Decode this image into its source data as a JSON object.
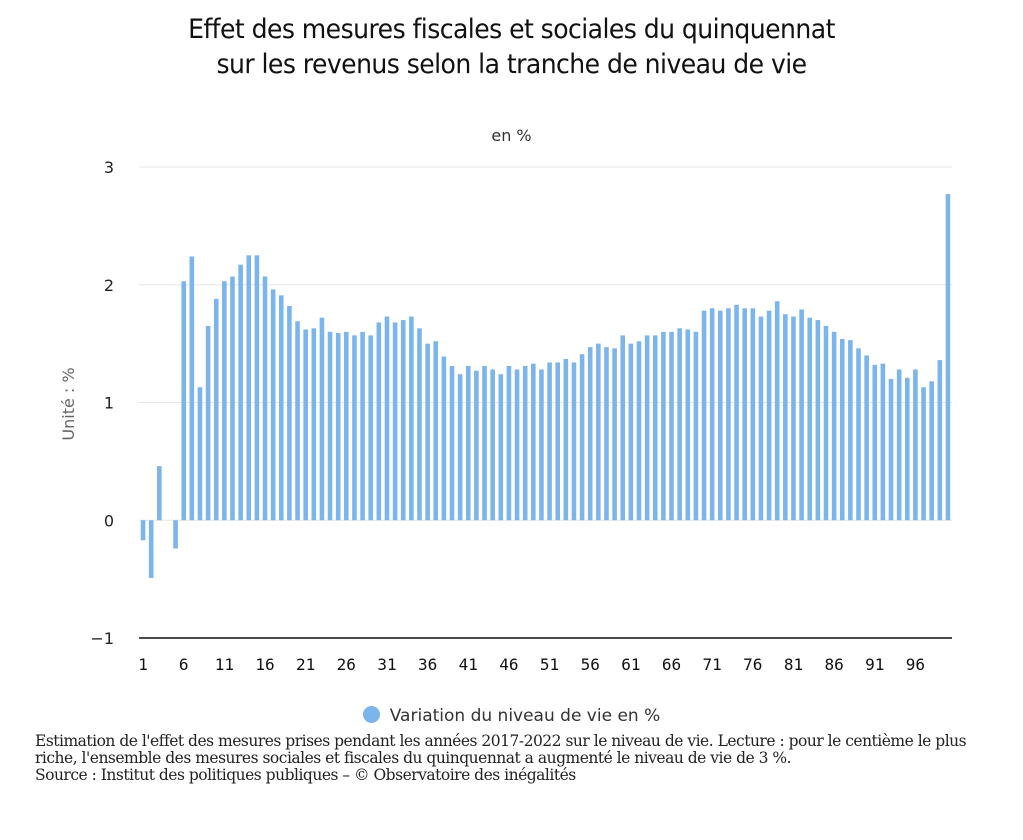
{
  "chart_data": {
    "type": "bar",
    "title": "Effet des mesures fiscales et sociales du quinquennat sur les revenus selon la tranche de niveau de vie",
    "title_lines": [
      "Effet des mesures fiscales et sociales du quinquennat",
      "sur les revenus selon la tranche de niveau de vie"
    ],
    "subtitle": "en %",
    "xlabel": "",
    "ylabel": "Unité : %",
    "ylim": [
      -1,
      3
    ],
    "yticks": [
      -1,
      0,
      1,
      2,
      3
    ],
    "ytick_labels": [
      "−1",
      "0",
      "1",
      "2",
      "3"
    ],
    "xtick_labels": [
      "1",
      "6",
      "11",
      "16",
      "21",
      "26",
      "31",
      "36",
      "41",
      "46",
      "51",
      "56",
      "61",
      "66",
      "71",
      "76",
      "81",
      "86",
      "91",
      "96"
    ],
    "grid": true,
    "legend_position": "bottom-center",
    "categories": [
      1,
      2,
      3,
      4,
      5,
      6,
      7,
      8,
      9,
      10,
      11,
      12,
      13,
      14,
      15,
      16,
      17,
      18,
      19,
      20,
      21,
      22,
      23,
      24,
      25,
      26,
      27,
      28,
      29,
      30,
      31,
      32,
      33,
      34,
      35,
      36,
      37,
      38,
      39,
      40,
      41,
      42,
      43,
      44,
      45,
      46,
      47,
      48,
      49,
      50,
      51,
      52,
      53,
      54,
      55,
      56,
      57,
      58,
      59,
      60,
      61,
      62,
      63,
      64,
      65,
      66,
      67,
      68,
      69,
      70,
      71,
      72,
      73,
      74,
      75,
      76,
      77,
      78,
      79,
      80,
      81,
      82,
      83,
      84,
      85,
      86,
      87,
      88,
      89,
      90,
      91,
      92,
      93,
      94,
      95,
      96,
      97,
      98,
      99,
      100
    ],
    "series": [
      {
        "name": "Variation du niveau de vie en %",
        "color": "#7cb5ec",
        "values": [
          -0.17,
          -0.49,
          0.46,
          0.0,
          -0.24,
          2.03,
          2.24,
          1.13,
          1.65,
          1.88,
          2.03,
          2.07,
          2.17,
          2.25,
          2.25,
          2.07,
          1.96,
          1.91,
          1.82,
          1.69,
          1.62,
          1.63,
          1.72,
          1.6,
          1.59,
          1.6,
          1.57,
          1.6,
          1.57,
          1.68,
          1.73,
          1.68,
          1.7,
          1.73,
          1.63,
          1.5,
          1.52,
          1.39,
          1.31,
          1.24,
          1.31,
          1.27,
          1.31,
          1.28,
          1.24,
          1.31,
          1.28,
          1.31,
          1.33,
          1.28,
          1.34,
          1.34,
          1.37,
          1.34,
          1.41,
          1.47,
          1.5,
          1.47,
          1.46,
          1.57,
          1.5,
          1.52,
          1.57,
          1.57,
          1.6,
          1.6,
          1.63,
          1.62,
          1.6,
          1.78,
          1.8,
          1.78,
          1.8,
          1.83,
          1.8,
          1.8,
          1.73,
          1.78,
          1.86,
          1.75,
          1.73,
          1.79,
          1.72,
          1.7,
          1.65,
          1.6,
          1.54,
          1.53,
          1.46,
          1.4,
          1.32,
          1.33,
          1.2,
          1.28,
          1.21,
          1.28,
          1.13,
          1.18,
          1.36,
          2.77
        ]
      }
    ]
  },
  "legend": {
    "label": "Variation du niveau de vie en %",
    "color": "#7cb5ec"
  },
  "caption": {
    "description": "Estimation de l'effet des mesures prises pendant les années 2017-2022 sur le niveau de vie. Lecture : pour le centième le plus riche, l'ensemble des mesures sociales et fiscales du quinquennat a augmenté le niveau de vie de 3 %.",
    "source": "Source : Institut des politiques publiques – © Observatoire des inégalités"
  }
}
